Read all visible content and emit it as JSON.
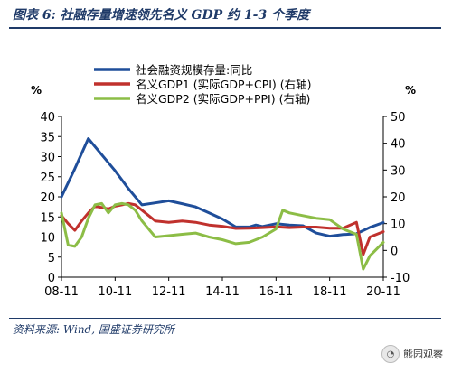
{
  "figure": {
    "title": "图表 6: 社融存量增速领先名义 GDP 约 1-3 个季度",
    "source": "资料来源: Wind, 国盛证券研究所",
    "watermark": "熊园观察",
    "watermark_icon": "wechat-icon"
  },
  "chart_data": {
    "type": "line",
    "y_unit_left": "%",
    "y_unit_right": "%",
    "xlim": [
      "2008-11",
      "2020-11"
    ],
    "ylim_left": [
      0,
      40
    ],
    "yticks_left": [
      0,
      5,
      10,
      15,
      20,
      25,
      30,
      35,
      40
    ],
    "ylim_right": [
      -10,
      50
    ],
    "yticks_right": [
      -10,
      0,
      10,
      20,
      30,
      40,
      50
    ],
    "xtick_labels": [
      "08-11",
      "10-11",
      "12-11",
      "14-11",
      "16-11",
      "18-11",
      "20-11"
    ],
    "grid": false,
    "legend_position": "top",
    "series": [
      {
        "name": "社会融资规模存量:同比",
        "color": "#1f4e9a",
        "axis": "left",
        "points": [
          [
            "2008-11",
            20
          ],
          [
            "2009-05",
            27
          ],
          [
            "2009-11",
            34.5
          ],
          [
            "2010-05",
            30.5
          ],
          [
            "2010-11",
            26.5
          ],
          [
            "2011-05",
            22
          ],
          [
            "2011-11",
            18
          ],
          [
            "2012-05",
            18.5
          ],
          [
            "2012-11",
            19
          ],
          [
            "2013-05",
            18.3
          ],
          [
            "2013-11",
            17.5
          ],
          [
            "2014-05",
            16
          ],
          [
            "2014-11",
            14.5
          ],
          [
            "2015-05",
            12.5
          ],
          [
            "2015-11",
            12.5
          ],
          [
            "2016-02",
            13
          ],
          [
            "2016-05",
            12.6
          ],
          [
            "2016-11",
            13.3
          ],
          [
            "2017-05",
            13
          ],
          [
            "2017-11",
            12.8
          ],
          [
            "2018-05",
            11
          ],
          [
            "2018-11",
            10.2
          ],
          [
            "2019-05",
            10.6
          ],
          [
            "2019-11",
            10.8
          ],
          [
            "2020-05",
            12.4
          ],
          [
            "2020-11",
            13.6
          ]
        ]
      },
      {
        "name": "名义GDP1 (实际GDP+CPI) (右轴)",
        "color": "#c0312d",
        "axis": "right",
        "points": [
          [
            "2008-11",
            13
          ],
          [
            "2009-02",
            10
          ],
          [
            "2009-05",
            7.5
          ],
          [
            "2009-08",
            11
          ],
          [
            "2009-11",
            14
          ],
          [
            "2010-02",
            16.5
          ],
          [
            "2010-05",
            16
          ],
          [
            "2010-08",
            15.5
          ],
          [
            "2010-11",
            16.5
          ],
          [
            "2011-02",
            17
          ],
          [
            "2011-05",
            17.5
          ],
          [
            "2011-08",
            17
          ],
          [
            "2011-11",
            15
          ],
          [
            "2012-05",
            11
          ],
          [
            "2012-11",
            10.5
          ],
          [
            "2013-05",
            11
          ],
          [
            "2013-11",
            10.5
          ],
          [
            "2014-05",
            9.5
          ],
          [
            "2014-11",
            9
          ],
          [
            "2015-05",
            8.2
          ],
          [
            "2015-11",
            8.3
          ],
          [
            "2016-05",
            8.5
          ],
          [
            "2016-11",
            8.8
          ],
          [
            "2017-05",
            8.5
          ],
          [
            "2017-11",
            8.7
          ],
          [
            "2018-05",
            8.7
          ],
          [
            "2018-11",
            8.3
          ],
          [
            "2019-05",
            8.3
          ],
          [
            "2019-11",
            10.5
          ],
          [
            "2020-02",
            -1.5
          ],
          [
            "2020-05",
            5
          ],
          [
            "2020-11",
            7
          ]
        ]
      },
      {
        "name": "名义GDP2 (实际GDP+PPI) (右轴)",
        "color": "#8cbd46",
        "axis": "right",
        "points": [
          [
            "2008-11",
            14
          ],
          [
            "2009-02",
            2
          ],
          [
            "2009-05",
            1.5
          ],
          [
            "2009-08",
            5
          ],
          [
            "2009-11",
            12
          ],
          [
            "2010-02",
            17
          ],
          [
            "2010-05",
            17.5
          ],
          [
            "2010-08",
            14
          ],
          [
            "2010-11",
            17
          ],
          [
            "2011-02",
            17.5
          ],
          [
            "2011-05",
            17
          ],
          [
            "2011-08",
            15
          ],
          [
            "2011-11",
            11
          ],
          [
            "2012-05",
            5
          ],
          [
            "2012-11",
            5.5
          ],
          [
            "2013-05",
            6
          ],
          [
            "2013-11",
            6.5
          ],
          [
            "2014-05",
            5
          ],
          [
            "2014-11",
            4
          ],
          [
            "2015-05",
            2.5
          ],
          [
            "2015-11",
            3
          ],
          [
            "2016-05",
            5
          ],
          [
            "2016-11",
            8
          ],
          [
            "2017-02",
            15
          ],
          [
            "2017-05",
            14
          ],
          [
            "2017-11",
            13
          ],
          [
            "2018-05",
            12
          ],
          [
            "2018-11",
            11.5
          ],
          [
            "2019-05",
            8
          ],
          [
            "2019-11",
            6
          ],
          [
            "2020-02",
            -7
          ],
          [
            "2020-05",
            -2
          ],
          [
            "2020-11",
            3
          ]
        ]
      }
    ]
  }
}
